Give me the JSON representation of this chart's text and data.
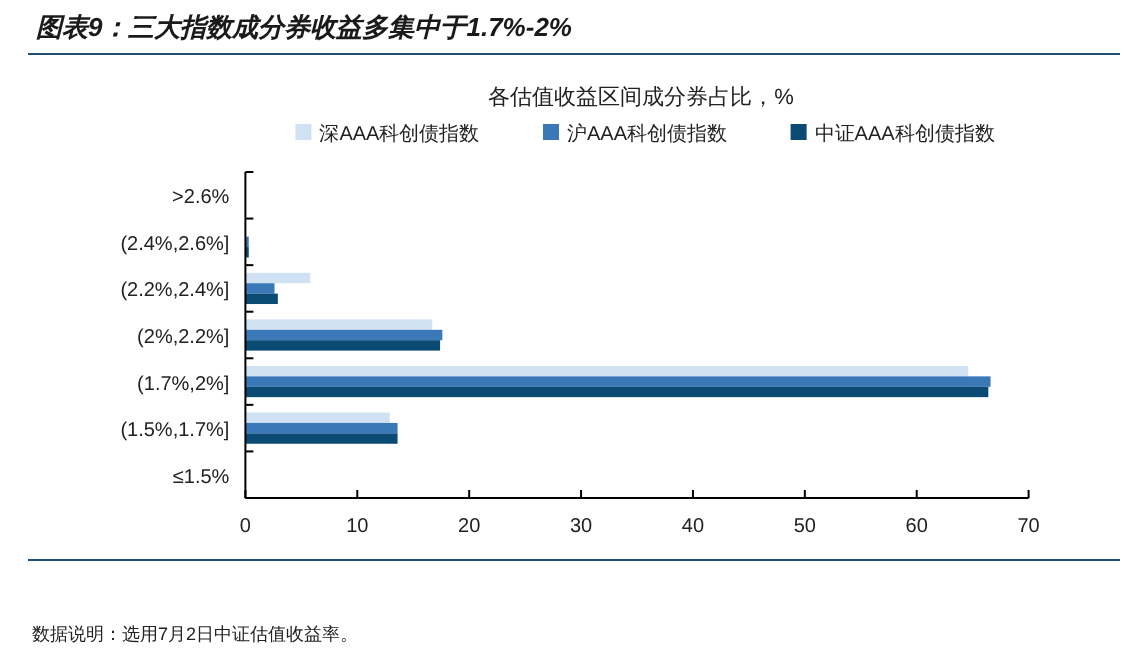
{
  "chart_data": {
    "type": "bar",
    "orientation": "horizontal",
    "title": "图表9：三大指数成分券收益多集中于1.7%-2%",
    "subtitle": "各估值收益区间成分券占比，%",
    "categories": [
      ">2.6%",
      "(2.4%,2.6%]",
      "(2.2%,2.4%]",
      "(2%,2.2%]",
      "(1.7%,2%]",
      "(1.5%,1.7%]",
      "≤1.5%"
    ],
    "series": [
      {
        "name": "深AAA科创债指数",
        "color": "#cfe1f2",
        "values": [
          0,
          0,
          5.8,
          16.7,
          64.6,
          12.9,
          0
        ]
      },
      {
        "name": "沪AAA科创债指数",
        "color": "#3a78b8",
        "values": [
          0,
          0.3,
          2.6,
          17.6,
          66.6,
          13.6,
          0
        ]
      },
      {
        "name": "中证AAA科创债指数",
        "color": "#0b4a72",
        "values": [
          0,
          0.3,
          2.9,
          17.4,
          66.4,
          13.6,
          0
        ]
      }
    ],
    "xlim": [
      0,
      70
    ],
    "xticks": [
      0,
      10,
      20,
      30,
      40,
      50,
      60,
      70
    ],
    "grid": false,
    "legend": "top",
    "annotations": [
      "数据说明：选用7月2日中证估值收益率。"
    ]
  }
}
